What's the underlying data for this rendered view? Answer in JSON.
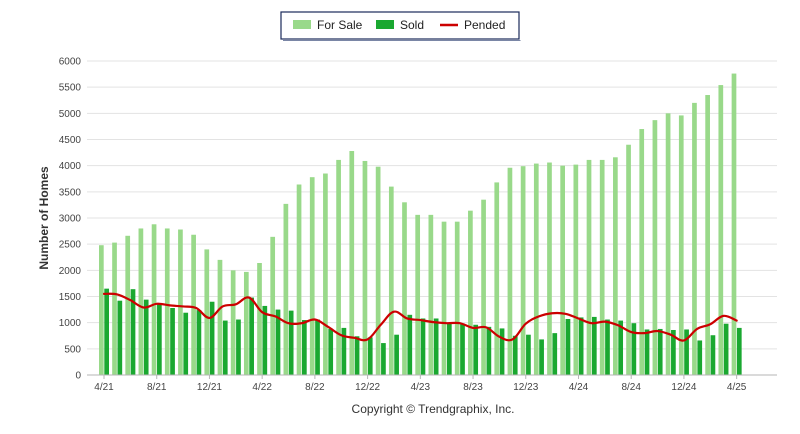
{
  "chart_data": {
    "type": "bar",
    "title": "",
    "ylabel": "Number of Homes",
    "xlabel": "",
    "ylim": [
      0,
      6000
    ],
    "yticks": [
      0,
      500,
      1000,
      1500,
      2000,
      2500,
      3000,
      3500,
      4000,
      4500,
      5000,
      5500,
      6000
    ],
    "grid": true,
    "legend_position": "top-center",
    "copyright": "Copyright © Trendgraphix, Inc.",
    "categories": [
      "4/21",
      "5/21",
      "6/21",
      "7/21",
      "8/21",
      "9/21",
      "10/21",
      "11/21",
      "12/21",
      "1/22",
      "2/22",
      "3/22",
      "4/22",
      "5/22",
      "6/22",
      "7/22",
      "8/22",
      "9/22",
      "10/22",
      "11/22",
      "12/22",
      "1/23",
      "2/23",
      "3/23",
      "4/23",
      "5/23",
      "6/23",
      "7/23",
      "8/23",
      "9/23",
      "10/23",
      "11/23",
      "12/23",
      "1/24",
      "2/24",
      "3/24",
      "4/24",
      "5/24",
      "6/24",
      "7/24",
      "8/24",
      "9/24",
      "10/24",
      "11/24",
      "12/24",
      "1/25",
      "2/25",
      "3/25",
      "4/25"
    ],
    "x_tick_labels": [
      "4/21",
      "8/21",
      "12/21",
      "4/22",
      "8/22",
      "12/22",
      "4/23",
      "8/23",
      "12/23",
      "4/24",
      "8/24",
      "12/24",
      "4/25"
    ],
    "series": [
      {
        "name": "For Sale",
        "type": "bar",
        "color": "#99d98a",
        "values": [
          2480,
          2530,
          2660,
          2800,
          2880,
          2800,
          2780,
          2680,
          2400,
          2200,
          2000,
          1970,
          2140,
          2640,
          3270,
          3640,
          3780,
          3850,
          4110,
          4280,
          4090,
          3980,
          3600,
          3300,
          3060,
          3060,
          2930,
          2930,
          3140,
          3350,
          3680,
          3960,
          3990,
          4040,
          4060,
          4000,
          4020,
          4110,
          4110,
          4160,
          4400,
          4700,
          4870,
          5000,
          4960,
          5200,
          5350,
          5540,
          5760
        ]
      },
      {
        "name": "Sold",
        "type": "bar",
        "color": "#1aa830",
        "values": [
          1650,
          1420,
          1640,
          1440,
          1350,
          1280,
          1190,
          1240,
          1400,
          1040,
          1060,
          1480,
          1320,
          1250,
          1230,
          1050,
          1060,
          880,
          900,
          740,
          720,
          610,
          770,
          1150,
          1080,
          1080,
          1000,
          980,
          960,
          920,
          890,
          750,
          770,
          680,
          800,
          1070,
          1100,
          1110,
          1060,
          1040,
          990,
          870,
          880,
          860,
          870,
          660,
          760,
          980,
          900
        ]
      },
      {
        "name": "Pended",
        "type": "line",
        "color": "#cc0000",
        "values": [
          1550,
          1540,
          1430,
          1290,
          1360,
          1330,
          1310,
          1280,
          1090,
          1310,
          1350,
          1480,
          1200,
          1120,
          990,
          990,
          1060,
          920,
          760,
          710,
          680,
          960,
          1210,
          1080,
          1050,
          1010,
          990,
          990,
          900,
          910,
          730,
          680,
          980,
          1120,
          1180,
          1170,
          1080,
          990,
          1020,
          950,
          820,
          800,
          840,
          770,
          660,
          880,
          970,
          1130,
          1040
        ]
      }
    ]
  }
}
